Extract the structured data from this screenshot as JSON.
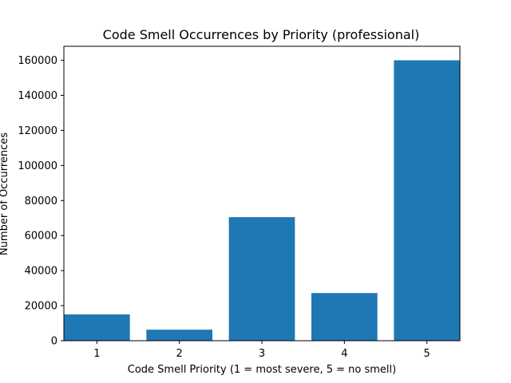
{
  "chart_data": {
    "type": "bar",
    "title": "Code Smell Occurrences by Priority (professional)",
    "xlabel": "Code Smell Priority (1 = most severe, 5 = no smell)",
    "ylabel": "Number of Occurrences",
    "categories": [
      "1",
      "2",
      "3",
      "4",
      "5"
    ],
    "values": [
      15000,
      6300,
      70500,
      27200,
      160000
    ],
    "ylim": [
      0,
      168000
    ],
    "yticks": [
      0,
      20000,
      40000,
      60000,
      80000,
      100000,
      120000,
      140000,
      160000
    ],
    "ytick_labels": [
      "0",
      "20000",
      "40000",
      "60000",
      "80000",
      "100000",
      "120000",
      "140000",
      "160000"
    ],
    "bar_color": "#1f77b4",
    "grid": false,
    "legend": "none"
  }
}
